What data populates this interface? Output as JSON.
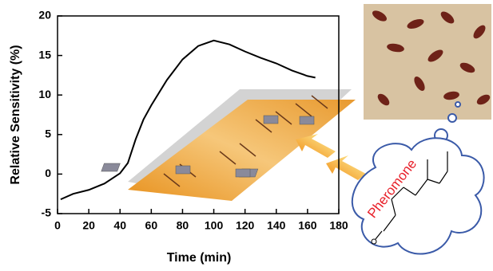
{
  "chart_data": {
    "type": "line",
    "xlabel": "Time (min)",
    "ylabel": "Relative Sensitivity (%)",
    "annotation": "Pheromone",
    "x": [
      2,
      10,
      20,
      30,
      40,
      45,
      50,
      55,
      60,
      70,
      80,
      90,
      100,
      110,
      120,
      130,
      140,
      150,
      160,
      165
    ],
    "series": [
      {
        "color": "#000000",
        "values": [
          -3.2,
          -2.5,
          -2.0,
          -1.2,
          0.1,
          1.4,
          4.4,
          6.9,
          8.7,
          11.9,
          14.5,
          16.2,
          16.9,
          16.4,
          15.5,
          14.7,
          14.0,
          13.1,
          12.4,
          12.2
        ]
      }
    ],
    "xlim": [
      0,
      180
    ],
    "xticks": [
      0,
      20,
      40,
      60,
      80,
      100,
      120,
      140,
      160,
      180
    ],
    "ylim": [
      -5,
      20
    ],
    "yticks": [
      -5,
      0,
      5,
      10,
      15,
      20
    ]
  }
}
